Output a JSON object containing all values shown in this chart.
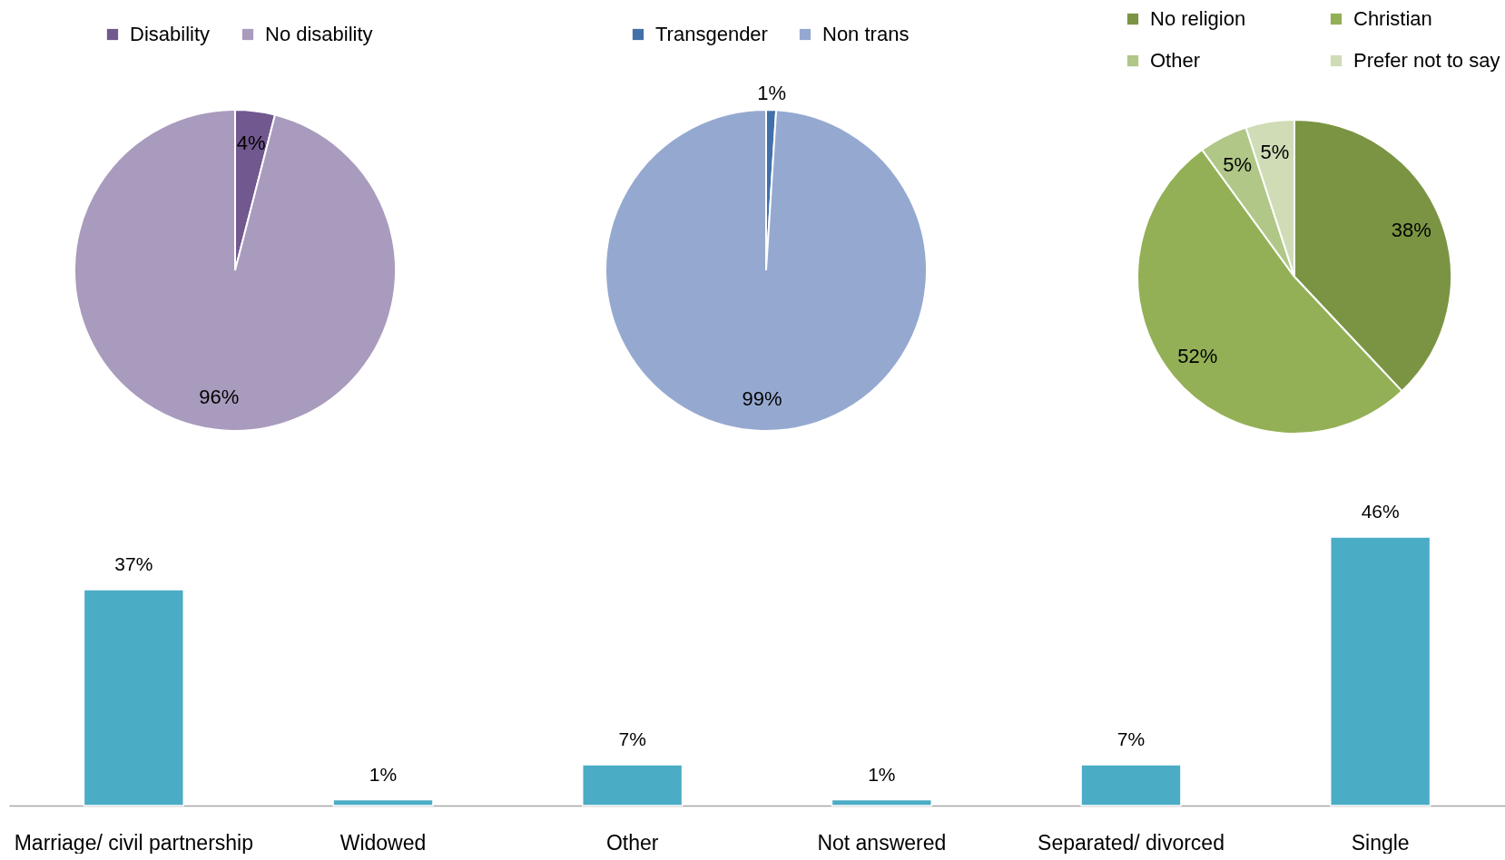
{
  "chart_data": [
    {
      "type": "pie",
      "categories": [
        "Disability",
        "No disability"
      ],
      "values": [
        4,
        96
      ],
      "colors": [
        "#71588f",
        "#a99bbd"
      ],
      "value_labels": [
        "4%",
        "96%"
      ],
      "legend": "top"
    },
    {
      "type": "pie",
      "categories": [
        "Transgender",
        "Non trans"
      ],
      "values": [
        1,
        99
      ],
      "colors": [
        "#4270a9",
        "#95a9d0"
      ],
      "value_labels": [
        "1%",
        "99%"
      ],
      "legend": "top"
    },
    {
      "type": "pie",
      "categories": [
        "No religion",
        "Christian",
        "Other",
        "Prefer not to say"
      ],
      "values": [
        38,
        52,
        5,
        5
      ],
      "colors": [
        "#7b9443",
        "#93b056",
        "#b0c787",
        "#cfdcb6"
      ],
      "value_labels": [
        "38%",
        "52%",
        "5%",
        "5%"
      ],
      "legend": "top"
    },
    {
      "type": "bar",
      "categories": [
        "Marriage/ civil partnership",
        "Widowed",
        "Other",
        "Not answered",
        "Separated/ divorced",
        "Single"
      ],
      "values": [
        37,
        1,
        7,
        1,
        7,
        46
      ],
      "color": "#4bacc6",
      "value_labels": [
        "37%",
        "1%",
        "7%",
        "1%",
        "7%",
        "46%"
      ]
    }
  ]
}
